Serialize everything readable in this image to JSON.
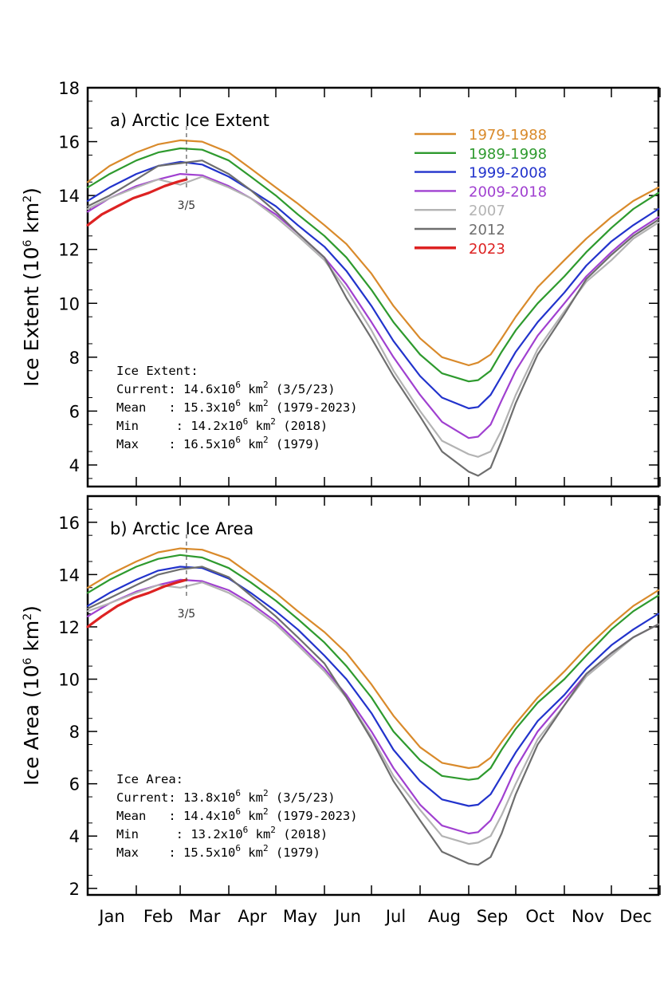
{
  "chart_data": [
    {
      "type": "line",
      "panel_title": "a) Arctic Ice Extent",
      "ylabel_main": "Ice Extent (10",
      "ylabel_exp": "6",
      "ylabel_unit": " km",
      "ylabel_sq": "2",
      "ylabel_close": ")",
      "ylim": [
        3.2,
        18
      ],
      "yticks": [
        "4",
        "6",
        "8",
        "10",
        "12",
        "14",
        "16",
        "18"
      ],
      "marker_label": "3/5",
      "marker_day": 64,
      "stats": {
        "heading": "Ice Extent:",
        "rows": [
          {
            "label": "Current: ",
            "value": "14.6x10",
            "exp": "6",
            "unit": " km",
            "sq": "2",
            "note": " (3/5/23)"
          },
          {
            "label": "Mean   : ",
            "value": "15.3x10",
            "exp": "6",
            "unit": " km",
            "sq": "2",
            "note": " (1979-2023)"
          },
          {
            "label": "Min     : ",
            "value": "14.2x10",
            "exp": "6",
            "unit": " km",
            "sq": "2",
            "note": " (2018)"
          },
          {
            "label": "Max    : ",
            "value": "16.5x10",
            "exp": "6",
            "unit": " km",
            "sq": "2",
            "note": " (1979)"
          }
        ]
      },
      "series": [
        {
          "name": "1979-1988",
          "color": "#d98a2b",
          "x": [
            1,
            15,
            32,
            46,
            60,
            74,
            91,
            105,
            121,
            135,
            152,
            166,
            182,
            196,
            213,
            227,
            244,
            250,
            258,
            265,
            274,
            288,
            305,
            319,
            335,
            349,
            365
          ],
          "values": [
            14.5,
            15.1,
            15.6,
            15.9,
            16.05,
            16.0,
            15.6,
            15.0,
            14.3,
            13.7,
            12.9,
            12.2,
            11.1,
            9.9,
            8.7,
            8.0,
            7.7,
            7.8,
            8.1,
            8.7,
            9.5,
            10.6,
            11.6,
            12.4,
            13.2,
            13.8,
            14.3
          ]
        },
        {
          "name": "1989-1998",
          "color": "#2e9a2e",
          "x": [
            1,
            15,
            32,
            46,
            60,
            74,
            91,
            105,
            121,
            135,
            152,
            166,
            182,
            196,
            213,
            227,
            244,
            250,
            258,
            265,
            274,
            288,
            305,
            319,
            335,
            349,
            365
          ],
          "values": [
            14.3,
            14.8,
            15.3,
            15.6,
            15.75,
            15.7,
            15.3,
            14.7,
            14.0,
            13.3,
            12.5,
            11.7,
            10.5,
            9.3,
            8.1,
            7.4,
            7.1,
            7.15,
            7.5,
            8.2,
            9.0,
            10.0,
            11.0,
            11.9,
            12.8,
            13.5,
            14.1
          ]
        },
        {
          "name": "1999-2008",
          "color": "#2233cc",
          "x": [
            1,
            15,
            32,
            46,
            60,
            74,
            91,
            105,
            121,
            135,
            152,
            166,
            182,
            196,
            213,
            227,
            244,
            250,
            258,
            265,
            274,
            288,
            305,
            319,
            335,
            349,
            365
          ],
          "values": [
            13.8,
            14.3,
            14.8,
            15.1,
            15.25,
            15.15,
            14.7,
            14.2,
            13.6,
            12.9,
            12.1,
            11.2,
            9.9,
            8.6,
            7.3,
            6.5,
            6.1,
            6.15,
            6.6,
            7.3,
            8.2,
            9.3,
            10.4,
            11.4,
            12.3,
            12.9,
            13.5
          ]
        },
        {
          "name": "2009-2018",
          "color": "#a040d0",
          "x": [
            1,
            15,
            32,
            46,
            60,
            74,
            91,
            105,
            121,
            135,
            152,
            166,
            182,
            196,
            213,
            227,
            244,
            250,
            258,
            265,
            274,
            288,
            305,
            319,
            335,
            349,
            365
          ],
          "values": [
            13.4,
            13.9,
            14.35,
            14.6,
            14.8,
            14.75,
            14.35,
            13.9,
            13.3,
            12.6,
            11.7,
            10.7,
            9.3,
            8.0,
            6.6,
            5.6,
            5.0,
            5.05,
            5.5,
            6.4,
            7.5,
            8.8,
            10.0,
            11.0,
            11.9,
            12.6,
            13.2
          ]
        },
        {
          "name": "2007",
          "color": "#b3b3b3",
          "x": [
            1,
            15,
            32,
            46,
            60,
            74,
            91,
            105,
            121,
            135,
            152,
            166,
            182,
            196,
            213,
            227,
            244,
            250,
            258,
            265,
            274,
            288,
            305,
            319,
            335,
            349,
            365
          ],
          "values": [
            13.5,
            13.9,
            14.3,
            14.6,
            14.4,
            14.7,
            14.3,
            13.9,
            13.2,
            12.5,
            11.6,
            10.5,
            9.0,
            7.5,
            6.0,
            4.9,
            4.4,
            4.3,
            4.5,
            5.3,
            6.6,
            8.3,
            9.7,
            10.8,
            11.6,
            12.4,
            13.0
          ]
        },
        {
          "name": "2012",
          "color": "#6e6e6e",
          "x": [
            1,
            15,
            32,
            46,
            60,
            74,
            91,
            105,
            121,
            135,
            152,
            166,
            182,
            196,
            213,
            227,
            244,
            250,
            258,
            265,
            274,
            288,
            305,
            319,
            335,
            349,
            365
          ],
          "values": [
            13.6,
            14.0,
            14.6,
            15.1,
            15.2,
            15.3,
            14.8,
            14.2,
            13.4,
            12.6,
            11.7,
            10.2,
            8.7,
            7.3,
            5.8,
            4.5,
            3.75,
            3.6,
            3.9,
            4.9,
            6.3,
            8.1,
            9.6,
            10.9,
            11.8,
            12.5,
            13.1
          ]
        },
        {
          "name": "2023",
          "color": "#dd2222",
          "x": [
            1,
            10,
            20,
            30,
            40,
            50,
            58,
            64
          ],
          "values": [
            12.9,
            13.3,
            13.6,
            13.9,
            14.1,
            14.35,
            14.5,
            14.6
          ]
        }
      ]
    },
    {
      "type": "line",
      "panel_title": "b) Arctic Ice Area",
      "ylabel_main": "Ice Area (10",
      "ylabel_exp": "6",
      "ylabel_unit": " km",
      "ylabel_sq": "2",
      "ylabel_close": ")",
      "ylim": [
        1.75,
        17
      ],
      "yticks": [
        "2",
        "4",
        "6",
        "8",
        "10",
        "12",
        "14",
        "16"
      ],
      "marker_label": "3/5",
      "marker_day": 64,
      "stats": {
        "heading": "Ice Area:",
        "rows": [
          {
            "label": "Current: ",
            "value": "13.8x10",
            "exp": "6",
            "unit": " km",
            "sq": "2",
            "note": " (3/5/23)"
          },
          {
            "label": "Mean   : ",
            "value": "14.4x10",
            "exp": "6",
            "unit": " km",
            "sq": "2",
            "note": " (1979-2023)"
          },
          {
            "label": "Min     : ",
            "value": "13.2x10",
            "exp": "6",
            "unit": " km",
            "sq": "2",
            "note": " (2018)"
          },
          {
            "label": "Max    : ",
            "value": "15.5x10",
            "exp": "6",
            "unit": " km",
            "sq": "2",
            "note": " (1979)"
          }
        ]
      },
      "series": [
        {
          "name": "1979-1988",
          "color": "#d98a2b",
          "x": [
            1,
            15,
            32,
            46,
            60,
            74,
            91,
            105,
            121,
            135,
            152,
            166,
            182,
            196,
            213,
            227,
            244,
            250,
            258,
            265,
            274,
            288,
            305,
            319,
            335,
            349,
            365
          ],
          "values": [
            13.5,
            14.0,
            14.5,
            14.85,
            15.0,
            14.95,
            14.6,
            14.0,
            13.3,
            12.6,
            11.8,
            11.0,
            9.8,
            8.6,
            7.4,
            6.8,
            6.6,
            6.65,
            7.0,
            7.6,
            8.3,
            9.3,
            10.3,
            11.2,
            12.1,
            12.8,
            13.4
          ]
        },
        {
          "name": "1989-1998",
          "color": "#2e9a2e",
          "x": [
            1,
            15,
            32,
            46,
            60,
            74,
            91,
            105,
            121,
            135,
            152,
            166,
            182,
            196,
            213,
            227,
            244,
            250,
            258,
            265,
            274,
            288,
            305,
            319,
            335,
            349,
            365
          ],
          "values": [
            13.3,
            13.8,
            14.3,
            14.6,
            14.75,
            14.65,
            14.25,
            13.7,
            13.0,
            12.3,
            11.4,
            10.5,
            9.3,
            8.0,
            6.9,
            6.3,
            6.15,
            6.2,
            6.6,
            7.3,
            8.1,
            9.1,
            10.0,
            10.9,
            11.9,
            12.6,
            13.2
          ]
        },
        {
          "name": "1999-2008",
          "color": "#2233cc",
          "x": [
            1,
            15,
            32,
            46,
            60,
            74,
            91,
            105,
            121,
            135,
            152,
            166,
            182,
            196,
            213,
            227,
            244,
            250,
            258,
            265,
            274,
            288,
            305,
            319,
            335,
            349,
            365
          ],
          "values": [
            12.8,
            13.3,
            13.8,
            14.15,
            14.3,
            14.25,
            13.85,
            13.3,
            12.6,
            11.9,
            10.9,
            10.0,
            8.7,
            7.3,
            6.1,
            5.4,
            5.15,
            5.2,
            5.6,
            6.3,
            7.2,
            8.4,
            9.4,
            10.4,
            11.3,
            11.9,
            12.5
          ]
        },
        {
          "name": "2009-2018",
          "color": "#a040d0",
          "x": [
            1,
            15,
            32,
            46,
            60,
            74,
            91,
            105,
            121,
            135,
            152,
            166,
            182,
            196,
            213,
            227,
            244,
            250,
            258,
            265,
            274,
            288,
            305,
            319,
            335,
            349,
            365
          ],
          "values": [
            12.4,
            12.9,
            13.35,
            13.6,
            13.8,
            13.75,
            13.4,
            12.9,
            12.2,
            11.4,
            10.4,
            9.4,
            8.0,
            6.6,
            5.2,
            4.4,
            4.1,
            4.15,
            4.6,
            5.4,
            6.6,
            8.0,
            9.2,
            10.2,
            11.0,
            11.6,
            12.1
          ]
        },
        {
          "name": "2007",
          "color": "#b3b3b3",
          "x": [
            1,
            15,
            32,
            46,
            60,
            74,
            91,
            105,
            121,
            135,
            152,
            166,
            182,
            196,
            213,
            227,
            244,
            250,
            258,
            265,
            274,
            288,
            305,
            319,
            335,
            349,
            365
          ],
          "values": [
            12.6,
            12.9,
            13.3,
            13.6,
            13.5,
            13.7,
            13.3,
            12.8,
            12.1,
            11.3,
            10.3,
            9.3,
            7.8,
            6.3,
            5.0,
            4.0,
            3.7,
            3.75,
            4.0,
            4.8,
            6.0,
            7.7,
            9.0,
            10.1,
            10.9,
            11.6,
            12.1
          ]
        },
        {
          "name": "2012",
          "color": "#6e6e6e",
          "x": [
            1,
            15,
            32,
            46,
            60,
            74,
            91,
            105,
            121,
            135,
            152,
            166,
            182,
            196,
            213,
            227,
            244,
            250,
            258,
            265,
            274,
            288,
            305,
            319,
            335,
            349,
            365
          ],
          "values": [
            12.7,
            13.1,
            13.6,
            14.0,
            14.2,
            14.3,
            13.9,
            13.2,
            12.4,
            11.6,
            10.6,
            9.3,
            7.7,
            6.1,
            4.6,
            3.4,
            2.95,
            2.9,
            3.2,
            4.1,
            5.6,
            7.5,
            9.0,
            10.2,
            11.0,
            11.6,
            12.1
          ]
        },
        {
          "name": "2023",
          "color": "#dd2222",
          "x": [
            1,
            10,
            20,
            30,
            40,
            50,
            58,
            64
          ],
          "values": [
            12.0,
            12.4,
            12.8,
            13.1,
            13.3,
            13.55,
            13.7,
            13.8
          ]
        }
      ]
    }
  ],
  "months": [
    "Jan",
    "Feb",
    "Mar",
    "Apr",
    "May",
    "Jun",
    "Jul",
    "Aug",
    "Sep",
    "Oct",
    "Nov",
    "Dec"
  ],
  "legend": [
    {
      "name": "1979-1988",
      "color": "#d98a2b"
    },
    {
      "name": "1989-1998",
      "color": "#2e9a2e"
    },
    {
      "name": "1999-2008",
      "color": "#2233cc"
    },
    {
      "name": "2009-2018",
      "color": "#a040d0"
    },
    {
      "name": "2007",
      "color": "#b3b3b3"
    },
    {
      "name": "2012",
      "color": "#6e6e6e"
    },
    {
      "name": "2023",
      "color": "#dd2222"
    }
  ]
}
